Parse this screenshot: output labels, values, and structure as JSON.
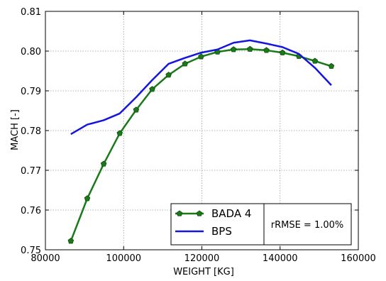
{
  "chart_data": {
    "type": "line",
    "xlabel": "WEIGHT [KG]",
    "ylabel": "MACH [-]",
    "xlim": [
      80000,
      160000
    ],
    "ylim": [
      0.75,
      0.81
    ],
    "xticks": [
      80000,
      100000,
      120000,
      140000,
      160000
    ],
    "yticks": [
      0.75,
      0.76,
      0.77,
      0.78,
      0.79,
      0.8,
      0.81
    ],
    "xtick_labels": [
      "80000",
      "100000",
      "120000",
      "140000",
      "160000"
    ],
    "ytick_labels": [
      "0.75",
      "0.76",
      "0.77",
      "0.78",
      "0.79",
      "0.80",
      "0.81"
    ],
    "grid": true,
    "legend_position": "bottom-center",
    "series": [
      {
        "name": "BADA 4",
        "color": "#1a7a1a",
        "marker": "pentagon",
        "x": [
          86500,
          90700,
          94900,
          99000,
          103200,
          107300,
          111500,
          115700,
          119800,
          124000,
          128100,
          132300,
          136500,
          140600,
          144800,
          148900,
          153100
        ],
        "y": [
          0.7522,
          0.7629,
          0.7716,
          0.7793,
          0.7852,
          0.7904,
          0.794,
          0.7968,
          0.7986,
          0.7998,
          0.8004,
          0.8005,
          0.8002,
          0.7996,
          0.7987,
          0.7975,
          0.7962
        ]
      },
      {
        "name": "BPS",
        "color": "#1515e0",
        "marker": "none",
        "x": [
          86500,
          90700,
          94900,
          99000,
          103200,
          107300,
          111500,
          115700,
          119800,
          124000,
          128100,
          132300,
          136500,
          140600,
          144800,
          148900,
          153100
        ],
        "y": [
          0.7791,
          0.7815,
          0.7826,
          0.7843,
          0.7884,
          0.7927,
          0.7968,
          0.7983,
          0.7996,
          0.8004,
          0.8021,
          0.8027,
          0.8019,
          0.801,
          0.7993,
          0.7958,
          0.7914
        ]
      }
    ],
    "annotation": "rRMSE = 1.00%"
  }
}
